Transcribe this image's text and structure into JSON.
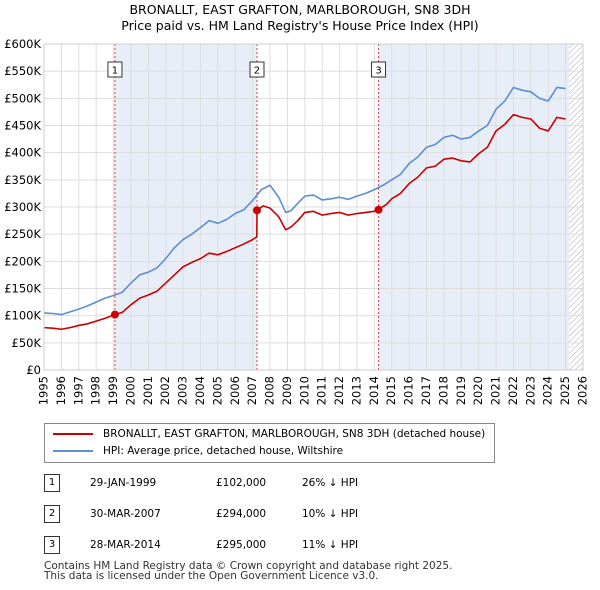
{
  "colors": {
    "property": "#cc0000",
    "hpi": "#5b8fd1",
    "shade": "#e8eef8",
    "grid": "#dddddd",
    "marker_line": "#cc0000"
  },
  "chart_data": {
    "type": "line",
    "title": "BRONALLT, EAST GRAFTON, MARLBOROUGH, SN8 3DH",
    "subtitle": "Price paid vs. HM Land Registry's House Price Index (HPI)",
    "x_ticks": [
      "1995",
      "1996",
      "1997",
      "1998",
      "1999",
      "2000",
      "2001",
      "2002",
      "2003",
      "2004",
      "2005",
      "2006",
      "2007",
      "2008",
      "2009",
      "2010",
      "2011",
      "2012",
      "2013",
      "2014",
      "2015",
      "2016",
      "2017",
      "2018",
      "2019",
      "2020",
      "2021",
      "2022",
      "2023",
      "2024",
      "2025",
      "2026"
    ],
    "y_ticks": [
      "£0",
      "£50K",
      "£100K",
      "£150K",
      "£200K",
      "£250K",
      "£300K",
      "£350K",
      "£400K",
      "£450K",
      "£500K",
      "£550K",
      "£600K"
    ],
    "xlim": [
      1995,
      2026
    ],
    "ylim": [
      0,
      600000
    ],
    "grid": true,
    "shaded_ranges": [
      [
        1999.08,
        2007.25
      ],
      [
        2014.24,
        2025.2
      ]
    ],
    "hatch_from": 2025.2,
    "series": [
      {
        "name": "BRONALLT, EAST GRAFTON, MARLBOROUGH, SN8 3DH (detached house)",
        "color": "#cc0000",
        "points": [
          [
            1995.0,
            78000
          ],
          [
            1995.5,
            77000
          ],
          [
            1996.0,
            75000
          ],
          [
            1996.5,
            78000
          ],
          [
            1997.0,
            82000
          ],
          [
            1997.5,
            85000
          ],
          [
            1998.0,
            90000
          ],
          [
            1998.5,
            95000
          ],
          [
            1999.08,
            102000
          ],
          [
            1999.5,
            106000
          ],
          [
            2000.0,
            120000
          ],
          [
            2000.5,
            132000
          ],
          [
            2001.0,
            138000
          ],
          [
            2001.5,
            145000
          ],
          [
            2002.0,
            160000
          ],
          [
            2002.5,
            175000
          ],
          [
            2003.0,
            190000
          ],
          [
            2003.5,
            198000
          ],
          [
            2004.0,
            205000
          ],
          [
            2004.5,
            215000
          ],
          [
            2005.0,
            212000
          ],
          [
            2005.5,
            218000
          ],
          [
            2006.0,
            225000
          ],
          [
            2006.5,
            232000
          ],
          [
            2007.0,
            240000
          ],
          [
            2007.24,
            245000
          ],
          [
            2007.25,
            294000
          ],
          [
            2007.6,
            302000
          ],
          [
            2008.0,
            298000
          ],
          [
            2008.5,
            282000
          ],
          [
            2008.9,
            258000
          ],
          [
            2009.2,
            263000
          ],
          [
            2009.6,
            275000
          ],
          [
            2010.0,
            290000
          ],
          [
            2010.5,
            292000
          ],
          [
            2011.0,
            285000
          ],
          [
            2011.5,
            288000
          ],
          [
            2012.0,
            290000
          ],
          [
            2012.5,
            285000
          ],
          [
            2013.0,
            288000
          ],
          [
            2013.5,
            290000
          ],
          [
            2014.0,
            292000
          ],
          [
            2014.24,
            295000
          ],
          [
            2014.7,
            305000
          ],
          [
            2015.0,
            315000
          ],
          [
            2015.5,
            325000
          ],
          [
            2016.0,
            343000
          ],
          [
            2016.5,
            355000
          ],
          [
            2017.0,
            372000
          ],
          [
            2017.5,
            375000
          ],
          [
            2018.0,
            388000
          ],
          [
            2018.5,
            390000
          ],
          [
            2019.0,
            385000
          ],
          [
            2019.5,
            383000
          ],
          [
            2020.0,
            398000
          ],
          [
            2020.5,
            410000
          ],
          [
            2021.0,
            440000
          ],
          [
            2021.5,
            452000
          ],
          [
            2022.0,
            470000
          ],
          [
            2022.5,
            465000
          ],
          [
            2023.0,
            462000
          ],
          [
            2023.5,
            445000
          ],
          [
            2024.0,
            440000
          ],
          [
            2024.5,
            465000
          ],
          [
            2025.0,
            462000
          ]
        ]
      },
      {
        "name": "HPI: Average price, detached house, Wiltshire",
        "color": "#5b8fd1",
        "points": [
          [
            1995.0,
            105000
          ],
          [
            1995.5,
            104000
          ],
          [
            1996.0,
            102000
          ],
          [
            1996.5,
            107000
          ],
          [
            1997.0,
            112000
          ],
          [
            1997.5,
            118000
          ],
          [
            1998.0,
            125000
          ],
          [
            1998.5,
            132000
          ],
          [
            1999.08,
            138000
          ],
          [
            1999.5,
            143000
          ],
          [
            2000.0,
            160000
          ],
          [
            2000.5,
            175000
          ],
          [
            2001.0,
            180000
          ],
          [
            2001.5,
            188000
          ],
          [
            2002.0,
            205000
          ],
          [
            2002.5,
            225000
          ],
          [
            2003.0,
            240000
          ],
          [
            2003.5,
            250000
          ],
          [
            2004.0,
            262000
          ],
          [
            2004.5,
            275000
          ],
          [
            2005.0,
            270000
          ],
          [
            2005.5,
            277000
          ],
          [
            2006.0,
            288000
          ],
          [
            2006.5,
            295000
          ],
          [
            2007.0,
            312000
          ],
          [
            2007.5,
            332000
          ],
          [
            2008.0,
            340000
          ],
          [
            2008.5,
            318000
          ],
          [
            2008.9,
            290000
          ],
          [
            2009.2,
            293000
          ],
          [
            2009.6,
            307000
          ],
          [
            2010.0,
            320000
          ],
          [
            2010.5,
            322000
          ],
          [
            2011.0,
            313000
          ],
          [
            2011.5,
            315000
          ],
          [
            2012.0,
            318000
          ],
          [
            2012.5,
            314000
          ],
          [
            2013.0,
            320000
          ],
          [
            2013.5,
            325000
          ],
          [
            2014.0,
            332000
          ],
          [
            2014.5,
            340000
          ],
          [
            2015.0,
            350000
          ],
          [
            2015.5,
            360000
          ],
          [
            2016.0,
            380000
          ],
          [
            2016.5,
            392000
          ],
          [
            2017.0,
            410000
          ],
          [
            2017.5,
            415000
          ],
          [
            2018.0,
            428000
          ],
          [
            2018.5,
            432000
          ],
          [
            2019.0,
            425000
          ],
          [
            2019.5,
            428000
          ],
          [
            2020.0,
            440000
          ],
          [
            2020.5,
            450000
          ],
          [
            2021.0,
            480000
          ],
          [
            2021.5,
            495000
          ],
          [
            2022.0,
            520000
          ],
          [
            2022.5,
            515000
          ],
          [
            2023.0,
            512000
          ],
          [
            2023.5,
            500000
          ],
          [
            2024.0,
            495000
          ],
          [
            2024.5,
            520000
          ],
          [
            2025.0,
            518000
          ]
        ]
      }
    ],
    "transactions": [
      {
        "label": "1",
        "x": 1999.08,
        "y": 102000
      },
      {
        "label": "2",
        "x": 2007.25,
        "y": 294000
      },
      {
        "label": "3",
        "x": 2014.24,
        "y": 295000
      }
    ]
  },
  "legend": [
    {
      "label": "BRONALLT, EAST GRAFTON, MARLBOROUGH, SN8 3DH (detached house)"
    },
    {
      "label": "HPI: Average price, detached house, Wiltshire"
    }
  ],
  "table": [
    {
      "num": "1",
      "date": "29-JAN-1999",
      "price": "£102,000",
      "hpi": "26% ↓ HPI"
    },
    {
      "num": "2",
      "date": "30-MAR-2007",
      "price": "£294,000",
      "hpi": "10% ↓ HPI"
    },
    {
      "num": "3",
      "date": "28-MAR-2014",
      "price": "£295,000",
      "hpi": "11% ↓ HPI"
    }
  ],
  "footer": {
    "line1": "Contains HM Land Registry data © Crown copyright and database right 2025.",
    "line2": "This data is licensed under the Open Government Licence v3.0."
  }
}
